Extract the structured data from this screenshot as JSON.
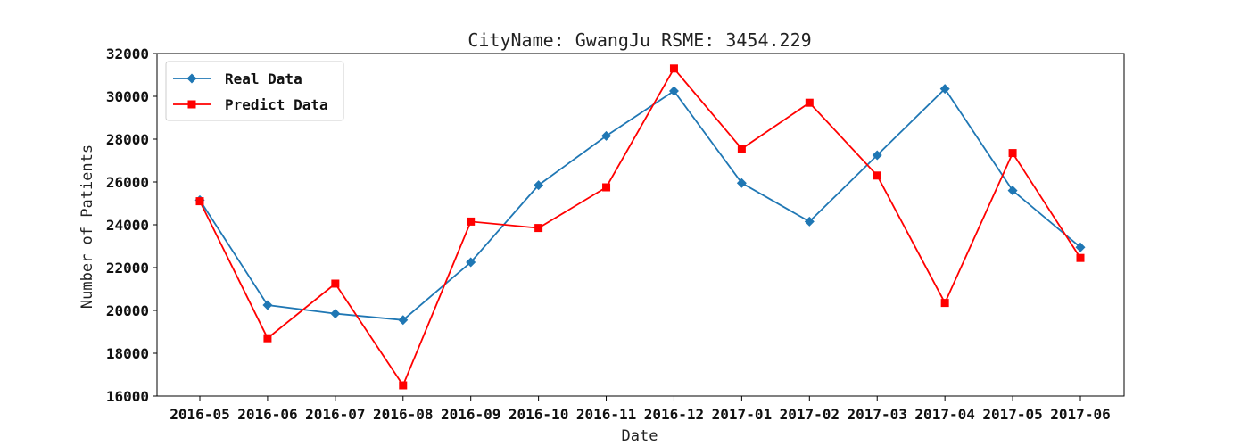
{
  "chart_data": {
    "type": "line",
    "title": "CityName: GwangJu  RSME: 3454.229",
    "xlabel": "Date",
    "ylabel": "Number of Patients",
    "categories": [
      "2016-05",
      "2016-06",
      "2016-07",
      "2016-08",
      "2016-09",
      "2016-10",
      "2016-11",
      "2016-12",
      "2017-01",
      "2017-02",
      "2017-03",
      "2017-04",
      "2017-05",
      "2017-06"
    ],
    "ylim": [
      16000,
      32000
    ],
    "yticks": [
      16000,
      18000,
      20000,
      22000,
      24000,
      26000,
      28000,
      30000,
      32000
    ],
    "grid": false,
    "legend_position": "top-left",
    "series": [
      {
        "name": "Real Data",
        "color": "#1f77b4",
        "marker": "diamond",
        "values": [
          25150,
          20250,
          19850,
          19550,
          22250,
          25850,
          28150,
          30250,
          25950,
          24150,
          27250,
          30350,
          25600,
          22950
        ]
      },
      {
        "name": "Predict Data",
        "color": "#ff0000",
        "marker": "square",
        "values": [
          25100,
          18700,
          21250,
          16500,
          24150,
          23850,
          25750,
          31300,
          27550,
          29700,
          26300,
          20350,
          27350,
          22450
        ]
      }
    ]
  }
}
